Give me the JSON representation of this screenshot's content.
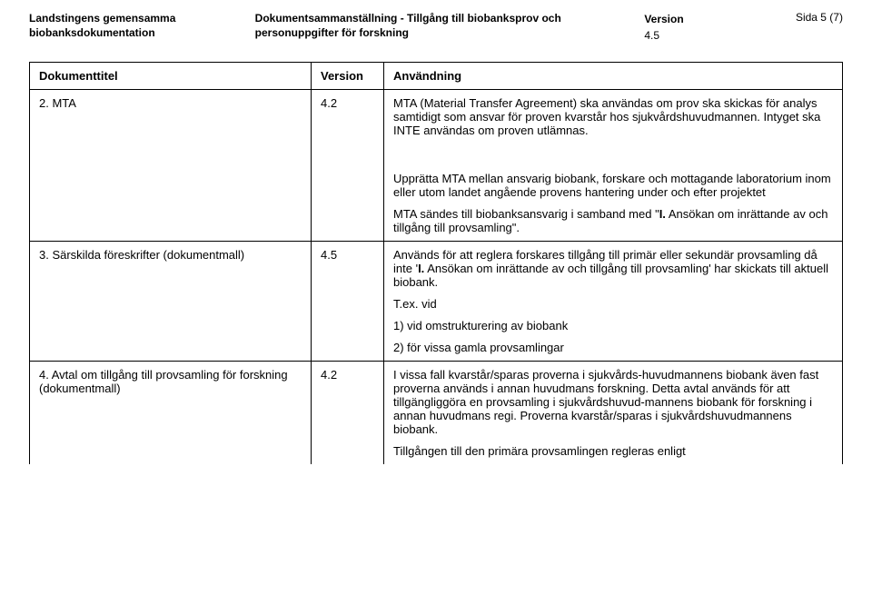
{
  "header": {
    "org_line1": "Landstingens gemensamma",
    "org_line2": "biobanksdokumentation",
    "title_line1": "Dokumentsammanställning - Tillgång till biobanksprov och",
    "title_line2": "personuppgifter för forskning",
    "version_label": "Version",
    "version_value": "4.5",
    "page_text": "Sida 5 (7)"
  },
  "table": {
    "headers": {
      "col1": "Dokumenttitel",
      "col2": "Version",
      "col3": "Användning"
    },
    "row_mta": {
      "title": "2. MTA",
      "version": "4.2",
      "p1": "MTA (Material Transfer Agreement) ska användas om prov ska skickas för analys samtidigt som ansvar för proven kvarstår hos sjukvårdshuvudmannen. Intyget ska INTE användas om proven utlämnas.",
      "p2": "Upprätta MTA mellan ansvarig biobank, forskare och mottagande laboratorium inom eller utom landet angående provens hantering under och efter projektet",
      "p3a": "MTA sändes till biobanksansvarig i samband med \"",
      "p3b": "I.",
      "p3c": " Ansökan om inrättande av och tillgång till provsamling\"."
    },
    "row_sar": {
      "title": "3. Särskilda föreskrifter (dokumentmall)",
      "version": "4.5",
      "p1a": "Används för att reglera forskares tillgång till primär eller sekundär provsamling då inte '",
      "p1b": "I.",
      "p1c": " Ansökan om inrättande av och tillgång till provsamling' har skickats till aktuell biobank.",
      "p2": "T.ex. vid",
      "p3": "1) vid omstrukturering av biobank",
      "p4": "2) för vissa gamla provsamlingar"
    },
    "row_avtal": {
      "title": "4. Avtal om tillgång till provsamling för forskning (dokumentmall)",
      "version": "4.2",
      "p1": "I vissa fall kvarstår/sparas proverna i sjukvårds-huvudmannens biobank även fast proverna används i annan huvudmans forskning. Detta avtal används för att tillgängliggöra en provsamling i sjukvårdshuvud-mannens biobank för forskning i annan huvudmans regi. Proverna kvarstår/sparas i sjukvårdshuvudmannens biobank.",
      "p2": "Tillgången till den primära provsamlingen regleras enligt"
    }
  }
}
